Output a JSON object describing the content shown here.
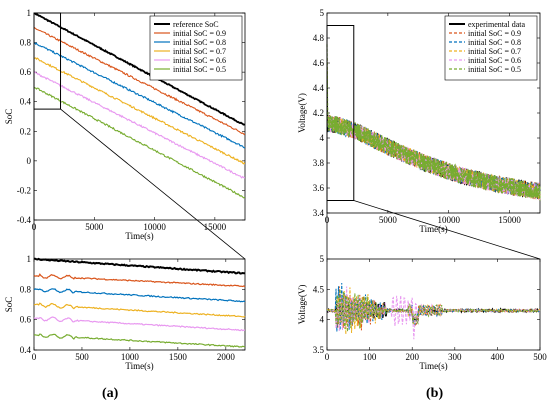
{
  "panel_labels": [
    "(a)",
    "(b)"
  ],
  "chart_data": [
    {
      "id": "a_main",
      "type": "line",
      "xlabel": "Time(s)",
      "ylabel": "SoC",
      "xlim": [
        0,
        17500
      ],
      "ylim": [
        -0.4,
        1.0
      ],
      "xticks": [
        0,
        5000,
        10000,
        15000
      ],
      "yticks": [
        -0.4,
        -0.2,
        0,
        0.2,
        0.4,
        0.6,
        0.8,
        1.0
      ],
      "xtick_labels": [
        "0",
        "5000",
        "10000",
        "15000"
      ],
      "ytick_labels": [
        "-0.4",
        "-0.2",
        "0",
        "0.2",
        "0.4",
        "0.6",
        "0.8",
        "1"
      ],
      "grid": false,
      "legend": "top-right",
      "zoom_box": {
        "x": [
          0,
          2200
        ],
        "y": [
          0.35,
          1.0
        ]
      },
      "series": [
        {
          "name": "reference SoC",
          "color": "#000000",
          "start": 1.0,
          "end": 0.24,
          "noise": 0.004
        },
        {
          "name": "initial SoC = 0.9",
          "color": "#d9541a",
          "start": 0.9,
          "end": 0.18,
          "noise": 0.006
        },
        {
          "name": "initial SoC = 0.8",
          "color": "#0072bd",
          "start": 0.8,
          "end": 0.09,
          "noise": 0.006
        },
        {
          "name": "initial SoC = 0.7",
          "color": "#edb120",
          "start": 0.7,
          "end": -0.02,
          "noise": 0.006
        },
        {
          "name": "initial SoC = 0.6",
          "color": "#e899f0",
          "start": 0.6,
          "end": -0.12,
          "noise": 0.006
        },
        {
          "name": "initial SoC = 0.5",
          "color": "#77ac30",
          "start": 0.5,
          "end": -0.25,
          "noise": 0.006
        }
      ]
    },
    {
      "id": "a_zoom",
      "type": "line",
      "xlabel": "Time(s)",
      "ylabel": "SoC",
      "xlim": [
        0,
        2200
      ],
      "ylim": [
        0.4,
        1.0
      ],
      "xticks": [
        0,
        500,
        1000,
        1500,
        2000
      ],
      "yticks": [
        0.4,
        0.6,
        0.8,
        1.0
      ],
      "xtick_labels": [
        "0",
        "500",
        "1000",
        "1500",
        "2000"
      ],
      "ytick_labels": [
        "0.4",
        "0.6",
        "0.8",
        "1"
      ],
      "grid": false,
      "series": [
        {
          "name": "reference SoC",
          "color": "#000000",
          "start": 1.0,
          "end": 0.905
        },
        {
          "name": "initial SoC = 0.9",
          "color": "#d9541a",
          "start": 0.89,
          "end": 0.82
        },
        {
          "name": "initial SoC = 0.8",
          "color": "#0072bd",
          "start": 0.8,
          "end": 0.72
        },
        {
          "name": "initial SoC = 0.7",
          "color": "#edb120",
          "start": 0.7,
          "end": 0.62
        },
        {
          "name": "initial SoC = 0.6",
          "color": "#e899f0",
          "start": 0.61,
          "end": 0.53
        },
        {
          "name": "initial SoC = 0.5",
          "color": "#77ac30",
          "start": 0.5,
          "end": 0.42
        }
      ]
    },
    {
      "id": "b_main",
      "type": "line",
      "xlabel": "Time(s)",
      "ylabel": "Voltage(V)",
      "xlim": [
        0,
        17500
      ],
      "ylim": [
        3.4,
        5.0
      ],
      "xticks": [
        0,
        5000,
        10000,
        15000
      ],
      "yticks": [
        3.4,
        3.6,
        3.8,
        4.0,
        4.2,
        4.4,
        4.6,
        4.8,
        5.0
      ],
      "xtick_labels": [
        "0",
        "5000",
        "10000",
        "15000"
      ],
      "ytick_labels": [
        "3.4",
        "3.6",
        "3.8",
        "4",
        "4.2",
        "4.4",
        "4.6",
        "4.8",
        "5"
      ],
      "grid": false,
      "legend": "top-right",
      "zoom_box": {
        "x": [
          0,
          2200
        ],
        "y": [
          3.5,
          4.9
        ]
      },
      "series": [
        {
          "name": "experimental data",
          "color": "#000000",
          "dashed": false
        },
        {
          "name": "initial SoC = 0.9",
          "color": "#d9541a",
          "dashed": true
        },
        {
          "name": "initial SoC = 0.8",
          "color": "#0072bd",
          "dashed": true
        },
        {
          "name": "initial SoC = 0.7",
          "color": "#edb120",
          "dashed": true
        },
        {
          "name": "initial SoC = 0.6",
          "color": "#e899f0",
          "dashed": true
        },
        {
          "name": "initial SoC = 0.5",
          "color": "#77ac30",
          "dashed": true
        }
      ],
      "envelope": {
        "t": [
          0,
          1000,
          2500,
          5000,
          8000,
          11000,
          14000,
          17500
        ],
        "v": [
          4.12,
          4.1,
          4.05,
          3.93,
          3.8,
          3.7,
          3.63,
          3.57
        ],
        "ripple": 0.07
      }
    },
    {
      "id": "b_zoom",
      "type": "line",
      "xlabel": "Time(s)",
      "ylabel": "Voltage(V)",
      "xlim": [
        0,
        500
      ],
      "ylim": [
        3.5,
        5.0
      ],
      "xticks": [
        0,
        100,
        200,
        300,
        400,
        500
      ],
      "yticks": [
        3.5,
        4.0,
        4.5,
        5.0
      ],
      "xtick_labels": [
        "0",
        "100",
        "200",
        "300",
        "400",
        "500"
      ],
      "ytick_labels": [
        "3.5",
        "4",
        "4.5",
        "5"
      ],
      "grid": false,
      "baseline": 4.15
    }
  ]
}
